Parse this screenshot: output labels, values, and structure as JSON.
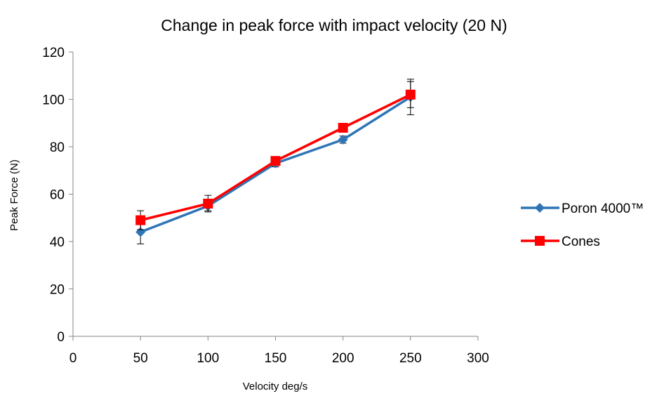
{
  "chart_data": {
    "type": "line",
    "title": "Change in peak force with impact velocity (20 N)",
    "xlabel": "Velocity deg/s",
    "ylabel": "Peak Force (N)",
    "xlim": [
      0,
      300
    ],
    "ylim": [
      0,
      120
    ],
    "xticks": [
      "0",
      "50",
      "100",
      "150",
      "200",
      "250",
      "300"
    ],
    "yticks": [
      "0",
      "20",
      "40",
      "60",
      "80",
      "100",
      "120"
    ],
    "x": [
      50,
      100,
      150,
      200,
      250
    ],
    "grid": false,
    "legend_position": "right",
    "series": [
      {
        "name": "Poron 4000™",
        "values": [
          44,
          55,
          73,
          83,
          101
        ],
        "error": [
          5,
          2,
          1.5,
          1.5,
          7.5
        ],
        "color": "#2E75B6",
        "marker": "diamond"
      },
      {
        "name": "Cones",
        "values": [
          49,
          56,
          74,
          88,
          102
        ],
        "error": [
          4,
          3.5,
          1,
          1.5,
          5.5
        ],
        "color": "#FF0000",
        "marker": "square"
      }
    ]
  }
}
